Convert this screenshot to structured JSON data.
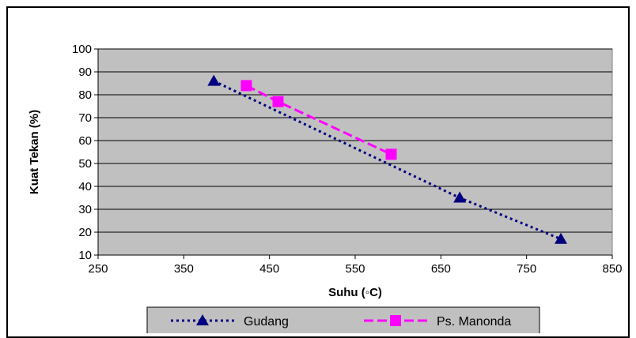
{
  "chart_data": {
    "type": "line",
    "xlabel": "Suhu (◦C)",
    "ylabel": "Kuat Tekan (%)",
    "xlim": [
      250,
      850
    ],
    "ylim": [
      10,
      100
    ],
    "x_ticks": [
      250,
      350,
      450,
      550,
      650,
      750,
      850
    ],
    "y_ticks": [
      10,
      20,
      30,
      40,
      50,
      60,
      70,
      80,
      90,
      100
    ],
    "grid": "horizontal",
    "plot_background": "#c0c0c0",
    "legend_position": "bottom",
    "series": [
      {
        "name": "Gudang",
        "color": "#000080",
        "marker": "triangle",
        "line_style": "dotted",
        "points": [
          [
            385,
            86
          ],
          [
            672,
            35
          ],
          [
            790,
            17
          ]
        ]
      },
      {
        "name": "Ps. Manonda",
        "color": "#ff00ff",
        "marker": "square",
        "line_style": "dashed",
        "points": [
          [
            423,
            84
          ],
          [
            460,
            77
          ],
          [
            592,
            54
          ]
        ]
      }
    ]
  }
}
